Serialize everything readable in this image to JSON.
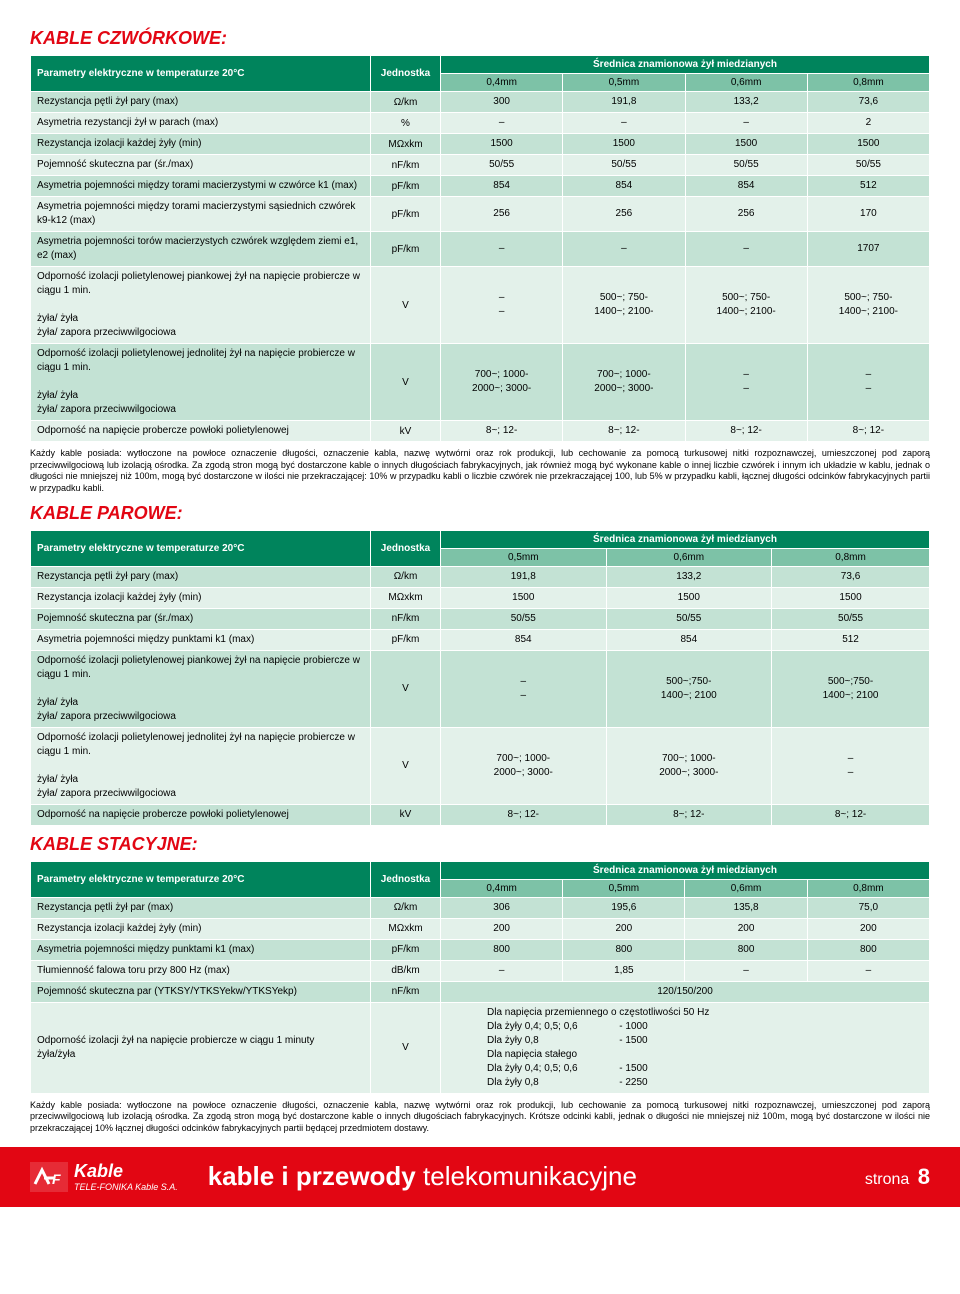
{
  "colors": {
    "accent": "#e20613",
    "header_bg": "#00845c",
    "subhead_bg": "#7dc2a7",
    "row_odd": "#c3e2d4",
    "row_even": "#e3f1ea",
    "text": "#000000",
    "white": "#ffffff"
  },
  "sections": {
    "quad": {
      "title": "KABLE CZWÓRKOWE:",
      "param_header": "Parametry elektryczne w temperaturze 20°C",
      "unit_header": "Jednostka",
      "super_header": "Średnica znamionowa żył miedzianych",
      "cols": [
        "0,4mm",
        "0,5mm",
        "0,6mm",
        "0,8mm"
      ],
      "rows": [
        {
          "p": "Rezystancja pętli żył pary (max)",
          "u": "Ω/km",
          "v": [
            "300",
            "191,8",
            "133,2",
            "73,6"
          ]
        },
        {
          "p": "Asymetria rezystancji żył w parach (max)",
          "u": "%",
          "v": [
            "–",
            "–",
            "–",
            "2"
          ]
        },
        {
          "p": "Rezystancja izolacji każdej żyły (min)",
          "u": "MΩxkm",
          "v": [
            "1500",
            "1500",
            "1500",
            "1500"
          ]
        },
        {
          "p": "Pojemność skuteczna par (śr./max)",
          "u": "nF/km",
          "v": [
            "50/55",
            "50/55",
            "50/55",
            "50/55"
          ]
        },
        {
          "p": "Asymetria pojemności między torami macierzystymi w czwórce k1 (max)",
          "u": "pF/km",
          "v": [
            "854",
            "854",
            "854",
            "512"
          ]
        },
        {
          "p": "Asymetria pojemności między torami macierzystymi sąsiednich czwórek k9-k12 (max)",
          "u": "pF/km",
          "v": [
            "256",
            "256",
            "256",
            "170"
          ]
        },
        {
          "p": "Asymetria pojemności torów macierzystych czwórek względem ziemi e1, e2 (max)",
          "u": "pF/km",
          "v": [
            "–",
            "–",
            "–",
            "1707"
          ]
        },
        {
          "p": "Odporność izolacji polietylenowej piankowej żył na napięcie probiercze w ciągu 1 min.<br><br>żyła/ żyła<br>żyła/ zapora przeciwwilgociowa",
          "u": "V",
          "v": [
            "–<br>–",
            "500~; 750-<br>1400~; 2100-",
            "500~; 750-<br>1400~; 2100-",
            "500~; 750-<br>1400~; 2100-"
          ]
        },
        {
          "p": "Odporność izolacji polietylenowej jednolitej żył na napięcie probiercze w ciągu 1 min.<br><br>żyła/ żyła<br>żyła/ zapora przeciwwilgociowa",
          "u": "V",
          "v": [
            "700~; 1000-<br>2000~; 3000-",
            "700~; 1000-<br>2000~; 3000-",
            "–<br>–",
            "–<br>–"
          ]
        },
        {
          "p": "Odporność na napięcie probercze powłoki polietylenowej",
          "u": "kV",
          "v": [
            "8~; 12-",
            "8~; 12-",
            "8~; 12-",
            "8~; 12-"
          ]
        }
      ]
    },
    "pair": {
      "title": "KABLE PAROWE:",
      "param_header": "Parametry elektryczne w temperaturze 20°C",
      "unit_header": "Jednostka",
      "super_header": "Średnica znamionowa żył miedzianych",
      "cols": [
        "0,5mm",
        "0,6mm",
        "0,8mm"
      ],
      "rows": [
        {
          "p": "Rezystancja pętli żył pary (max)",
          "u": "Ω/km",
          "v": [
            "191,8",
            "133,2",
            "73,6"
          ]
        },
        {
          "p": "Rezystancja izolacji każdej żyły (min)",
          "u": "MΩxkm",
          "v": [
            "1500",
            "1500",
            "1500"
          ]
        },
        {
          "p": "Pojemność skuteczna par (śr./max)",
          "u": "nF/km",
          "v": [
            "50/55",
            "50/55",
            "50/55"
          ]
        },
        {
          "p": "Asymetria pojemności między punktami k1 (max)",
          "u": "pF/km",
          "v": [
            "854",
            "854",
            "512"
          ]
        },
        {
          "p": "Odporność izolacji polietylenowej piankowej żył na napięcie probiercze w ciągu 1 min.<br><br>żyła/ żyła<br>żyła/ zapora przeciwwilgociowa",
          "u": "V",
          "v": [
            "–<br>–",
            "500~;750-<br>1400~; 2100",
            "500~;750-<br>1400~; 2100"
          ]
        },
        {
          "p": "Odporność izolacji polietylenowej jednolitej żył na napięcie probiercze w ciągu 1 min.<br><br>żyła/ żyła<br>żyła/ zapora przeciwwilgociowa",
          "u": "V",
          "v": [
            "700~; 1000-<br>2000~; 3000-",
            "700~; 1000-<br>2000~; 3000-",
            "–<br>–"
          ]
        },
        {
          "p": "Odporność na napięcie probercze powłoki polietylenowej",
          "u": "kV",
          "v": [
            "8~; 12-",
            "8~; 12-",
            "8~; 12-"
          ]
        }
      ]
    },
    "station": {
      "title": "KABLE STACYJNE:",
      "param_header": "Parametry elektryczne w temperaturze 20°C",
      "unit_header": "Jednostka",
      "super_header": "Średnica znamionowa żył miedzianych",
      "cols": [
        "0,4mm",
        "0,5mm",
        "0,6mm",
        "0,8mm"
      ],
      "rows": [
        {
          "p": "Rezystancja pętli żył par (max)",
          "u": "Ω/km",
          "v": [
            "306",
            "195,6",
            "135,8",
            "75,0"
          ]
        },
        {
          "p": "Rezystancja izolacji każdej żyły (min)",
          "u": "MΩxkm",
          "v": [
            "200",
            "200",
            "200",
            "200"
          ]
        },
        {
          "p": "Asymetria pojemności między punktami k1 (max)",
          "u": "pF/km",
          "v": [
            "800",
            "800",
            "800",
            "800"
          ]
        },
        {
          "p": "Tłumienność falowa toru przy 800 Hz (max)",
          "u": "dB/km",
          "v": [
            "–",
            "1,85",
            "–",
            "–"
          ]
        },
        {
          "p": "Pojemność skuteczna par (YTKSY/YTKSYekw/YTKSYekp)",
          "u": "nF/km",
          "v": [
            "__SPAN4__120/150/200"
          ]
        },
        {
          "p": "Odporność izolacji żył na napięcie probiercze w ciągu 1 minuty<br>żyła/żyła",
          "u": "V",
          "v": [
            "__SPAN4__<div style='text-align:left;padding-left:40px'>Dla napięcia przemiennego o częstotliwości 50 Hz<br>Dla żyły 0,4; 0,5; 0,6 &nbsp;&nbsp;&nbsp;&nbsp;&nbsp;&nbsp;&nbsp;&nbsp;&nbsp;&nbsp;&nbsp;&nbsp;&nbsp;&nbsp;- 1000<br>Dla żyły 0,8 &nbsp;&nbsp;&nbsp;&nbsp;&nbsp;&nbsp;&nbsp;&nbsp;&nbsp;&nbsp;&nbsp;&nbsp;&nbsp;&nbsp;&nbsp;&nbsp;&nbsp;&nbsp;&nbsp;&nbsp;&nbsp;&nbsp;&nbsp;&nbsp;&nbsp;&nbsp;&nbsp;&nbsp;- 1500<br>Dla napięcia stałego<br>Dla żyły 0,4; 0,5; 0,6 &nbsp;&nbsp;&nbsp;&nbsp;&nbsp;&nbsp;&nbsp;&nbsp;&nbsp;&nbsp;&nbsp;&nbsp;&nbsp;&nbsp;- 1500<br>Dla żyły 0,8 &nbsp;&nbsp;&nbsp;&nbsp;&nbsp;&nbsp;&nbsp;&nbsp;&nbsp;&nbsp;&nbsp;&nbsp;&nbsp;&nbsp;&nbsp;&nbsp;&nbsp;&nbsp;&nbsp;&nbsp;&nbsp;&nbsp;&nbsp;&nbsp;&nbsp;&nbsp;&nbsp;&nbsp;- 2250</div>"
          ]
        }
      ]
    }
  },
  "notes": {
    "quad": "Każdy kable posiada: wytłoczone na powłoce oznaczenie długości, oznaczenie kabla, nazwę wytwórni oraz rok produkcji, lub cechowanie za pomocą turkusowej nitki rozpoznawczej, umieszczonej pod zaporą przeciwwilgociową lub izolacją ośrodka. Za zgodą stron mogą być dostarczone kable o innych długościach fabrykacyjnych, jak również mogą być wykonane kable o innej liczbie czwórek i innym ich układzie w kablu, jednak o długości nie mniejszej niż 100m, mogą być dostarczone w ilości nie przekraczającej: 10% w przypadku kabli o liczbie czwórek nie przekraczającej 100, lub 5% w przypadku kabli, łącznej długości odcinków fabrykacyjnych partii w przypadku kabli.",
    "station": "Każdy kable posiada: wytłoczone na powłoce oznaczenie długości, oznaczenie kabla, nazwę wytwórni oraz rok produkcji, lub cechowanie za pomocą turkusowej nitki rozpoznawczej, umieszczonej pod zaporą przeciwwilgociową lub izolacją ośrodka. Za zgodą stron mogą być dostarczone kable o innych długościach fabrykacyjnych. Krótsze odcinki kabli, jednak o długości nie mniejszej niż 100m, mogą być dostarczone w ilości nie przekraczającej 10% łącznej długości odcinków fabrykacyjnych partii będącej przedmiotem dostawy."
  },
  "footer": {
    "logo_main": "Kable",
    "logo_sub": "TELE-FONIKA Kable S.A.",
    "title_bold": "kable i przewody",
    "title_light": "telekomunikacyjne",
    "page_label": "strona",
    "page_num": "8"
  }
}
